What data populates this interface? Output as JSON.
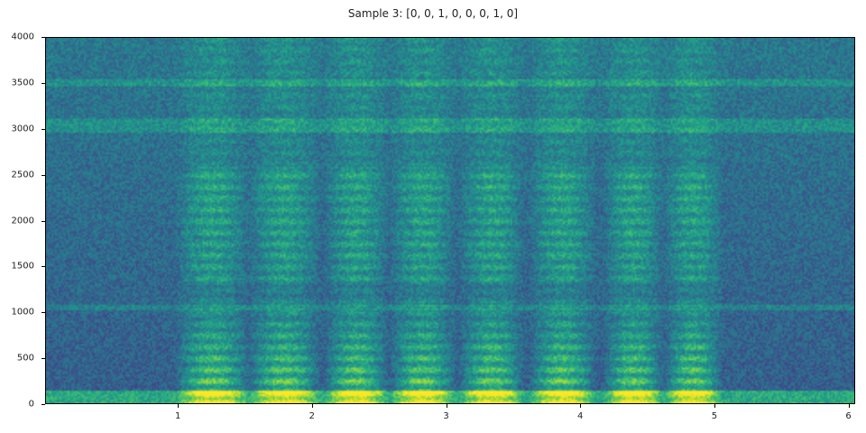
{
  "chart_data": {
    "type": "heatmap",
    "title": "Sample 3: [0, 0, 1, 0, 0, 0, 1, 0]",
    "xlabel": "",
    "ylabel": "",
    "xlim": [
      0.01,
      6.05
    ],
    "ylim": [
      0,
      4000
    ],
    "xticks": [
      "1",
      "2",
      "3",
      "4",
      "5",
      "6"
    ],
    "yticks": [
      "0",
      "500",
      "1000",
      "1500",
      "2000",
      "2500",
      "3000",
      "3500",
      "4000"
    ],
    "colormap": "viridis",
    "grid": false,
    "syllables_seconds": [
      [
        0.97,
        1.53
      ],
      [
        1.51,
        2.06
      ],
      [
        2.08,
        2.57
      ],
      [
        2.57,
        3.07
      ],
      [
        3.09,
        3.58
      ],
      [
        3.61,
        4.12
      ],
      [
        4.17,
        4.62
      ],
      [
        4.62,
        5.06
      ]
    ],
    "constant_bands_hz": [
      [
        0,
        150
      ],
      [
        1030,
        1080
      ],
      [
        2980,
        3120
      ],
      [
        3480,
        3560
      ]
    ]
  }
}
